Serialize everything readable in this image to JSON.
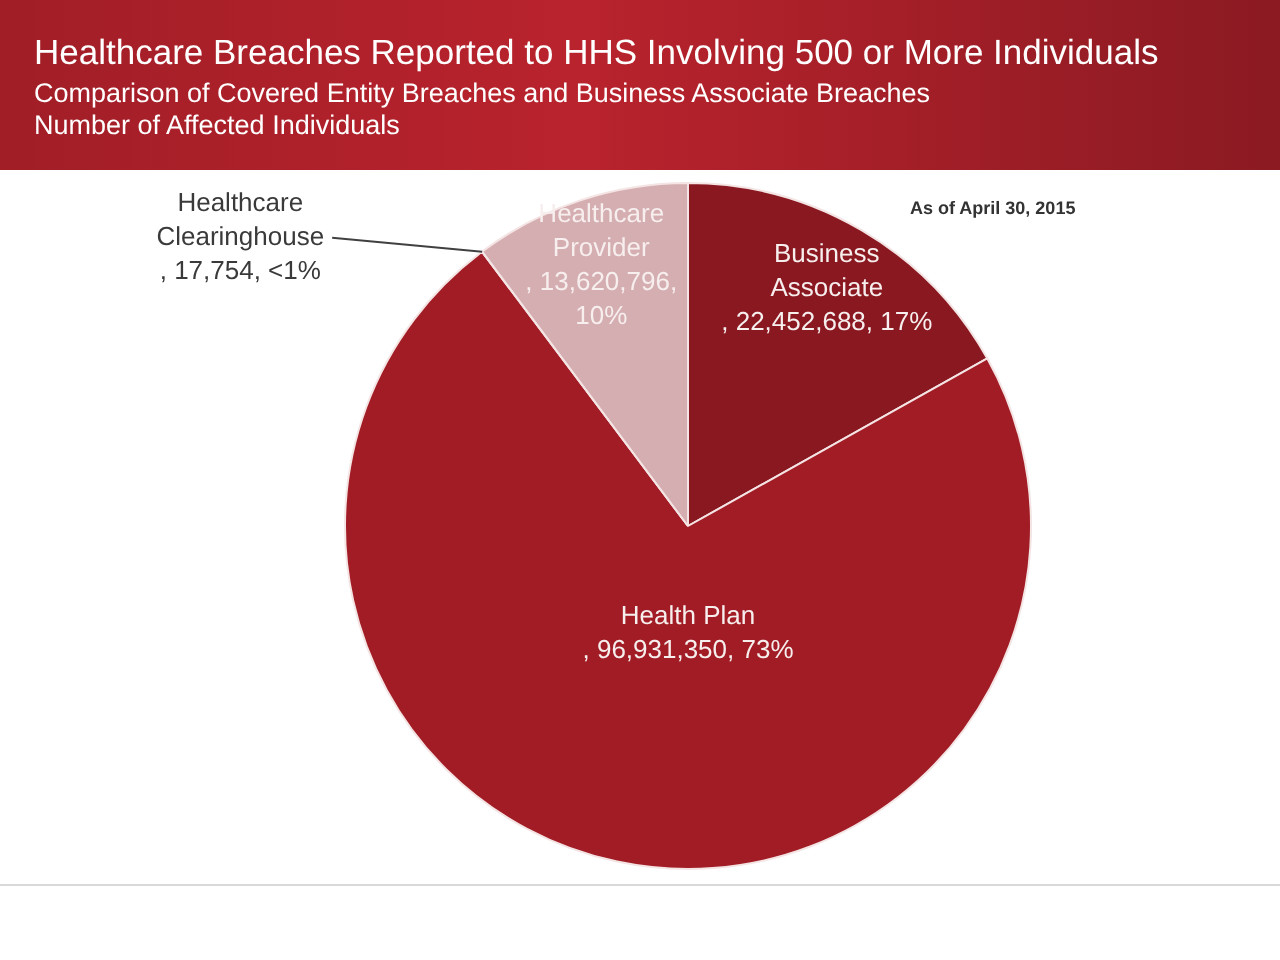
{
  "chart_data": {
    "type": "pie",
    "title": "Healthcare Breaches Reported to HHS Involving 500 or More Individuals",
    "subtitle": "Comparison of Covered Entity Breaches and Business Associate Breaches\nNumber of Affected Individuals",
    "annotations": [
      "As of April 30, 2015"
    ],
    "categories": [
      "Business Associate",
      "Health Plan",
      "Healthcare Clearinghouse",
      "Healthcare Provider"
    ],
    "values": [
      22452688,
      96931350,
      17754,
      13620796
    ],
    "colors": [
      "#8a1821",
      "#a11c25",
      "#c4434b",
      "#d5aeb1"
    ],
    "value_labels": [
      ", 22,452,688, 17%",
      ", 96,931,350, 73%",
      ", 17,754, <1%",
      ", 13,620,796, 10%"
    ]
  }
}
